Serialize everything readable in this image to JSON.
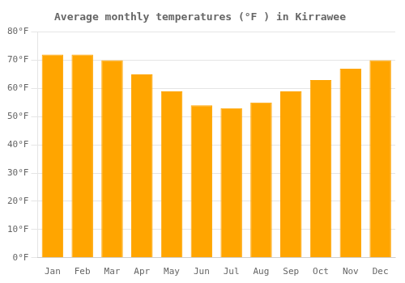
{
  "chart_data": {
    "type": "bar",
    "title": "Average monthly temperatures (°F ) in Kirrawee",
    "categories": [
      "Jan",
      "Feb",
      "Mar",
      "Apr",
      "May",
      "Jun",
      "Jul",
      "Aug",
      "Sep",
      "Oct",
      "Nov",
      "Dec"
    ],
    "values": [
      72,
      72,
      70,
      65,
      59,
      54,
      53,
      55,
      59,
      63,
      67,
      70
    ],
    "color": "#FFA500",
    "ylim": [
      0,
      80
    ],
    "yticks": [
      {
        "value": 0,
        "label": "0°F"
      },
      {
        "value": 10,
        "label": "10°F"
      },
      {
        "value": 20,
        "label": "20°F"
      },
      {
        "value": 30,
        "label": "30°F"
      },
      {
        "value": 40,
        "label": "40°F"
      },
      {
        "value": 50,
        "label": "50°F"
      },
      {
        "value": 60,
        "label": "60°F"
      },
      {
        "value": 70,
        "label": "70°F"
      },
      {
        "value": 80,
        "label": "80°F"
      }
    ],
    "grid": true
  }
}
